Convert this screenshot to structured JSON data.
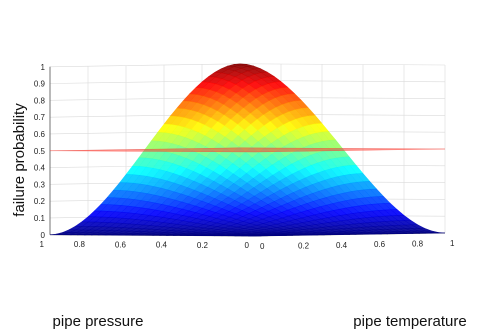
{
  "chart_data": {
    "type": "surface",
    "title": "",
    "xlabel": "pipe pressure",
    "ylabel": "pipe temperature",
    "zlabel": "failure probability",
    "xlim": [
      0,
      1
    ],
    "ylim": [
      0,
      1
    ],
    "zlim": [
      0,
      1
    ],
    "x_ticks": [
      "0",
      "0.2",
      "0.4",
      "0.6",
      "0.8",
      "1"
    ],
    "y_ticks": [
      "0",
      "0.2",
      "0.4",
      "0.6",
      "0.8",
      "1"
    ],
    "z_ticks": [
      "0",
      "0.1",
      "0.2",
      "0.3",
      "0.4",
      "0.5",
      "0.6",
      "0.7",
      "0.8",
      "0.9",
      "1"
    ],
    "grid": true,
    "colormap": "jet",
    "series": [
      {
        "kind": "surface",
        "description_values": {
          "x": [
            0,
            0.2,
            0.4,
            0.6,
            0.8,
            1
          ],
          "y": [
            0,
            0.2,
            0.4,
            0.6,
            0.8,
            1
          ],
          "z": [
            [
              0.0,
              0.03,
              0.08,
              0.12,
              0.15,
              0.16
            ],
            [
              0.03,
              0.09,
              0.18,
              0.26,
              0.31,
              0.33
            ],
            [
              0.08,
              0.18,
              0.34,
              0.48,
              0.57,
              0.6
            ],
            [
              0.12,
              0.26,
              0.48,
              0.67,
              0.8,
              0.84
            ],
            [
              0.15,
              0.31,
              0.57,
              0.8,
              0.94,
              0.98
            ],
            [
              0.16,
              0.33,
              0.6,
              0.84,
              0.98,
              1.0
            ]
          ]
        }
      },
      {
        "kind": "plane",
        "z": 0.5,
        "color": "#ff3b30"
      }
    ]
  }
}
